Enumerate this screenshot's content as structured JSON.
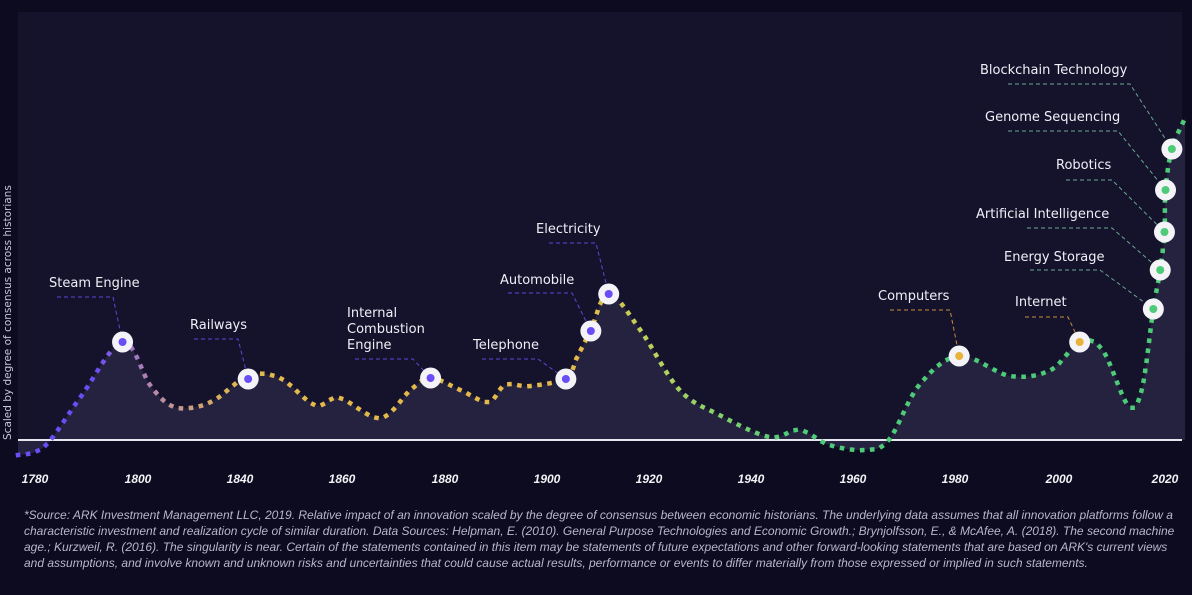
{
  "chart_data": {
    "type": "area",
    "title": "",
    "xlabel": "",
    "ylabel": "Scaled by degree of consensus across historians",
    "x_tick_labels": [
      "1780",
      "1800",
      "1840",
      "1860",
      "1880",
      "1900",
      "1920",
      "1940",
      "1960",
      "1980",
      "2000",
      "2020"
    ],
    "xlim": [
      1776,
      2024
    ],
    "ylim": [
      -5,
      100
    ],
    "grid": false,
    "line_style": "dotted",
    "colors": {
      "purple": "#6a4df5",
      "rose": "#b98aa8",
      "yellow": "#e2b94a",
      "lime": "#b9d35e",
      "green": "#4ecb78",
      "orange": "#e8a73a"
    },
    "curve": {
      "x": [
        1776.7,
        1780,
        1783,
        1789,
        1797,
        1804.7,
        1812.5,
        1820.4,
        1830,
        1841.6,
        1847.8,
        1854.7,
        1859.5,
        1867.4,
        1873.3,
        1877.2,
        1883,
        1888.5,
        1891.8,
        1896.7,
        1903.7,
        1906,
        1908.6,
        1912.1,
        1918.3,
        1926,
        1933.8,
        1943.6,
        1949.5,
        1955.4,
        1962.2,
        1967,
        1973,
        1980.8,
        1990.6,
        1998.4,
        2003.9,
        2008.2,
        2013,
        2015.6,
        2017.8,
        2019.1,
        2019.9,
        2020.1,
        2021.3,
        2023.8
      ],
      "y": [
        -3.75,
        -3,
        0,
        11,
        24.5,
        13.75,
        8.75,
        8,
        10,
        16,
        15.5,
        8.75,
        10.5,
        5.5,
        12.5,
        15.5,
        12.5,
        9.5,
        13.75,
        13.5,
        15.5,
        21,
        27.5,
        36.5,
        27.5,
        12.5,
        6.25,
        0.75,
        2.5,
        -1.25,
        -2.5,
        0,
        13.75,
        21,
        16,
        17.5,
        24.5,
        22.5,
        8.75,
        12.5,
        32.75,
        42.5,
        52,
        62.5,
        72.75,
        80.5
      ]
    },
    "innovations": [
      {
        "label": "Steam Engine",
        "x": 1797,
        "y": 24.5,
        "color": "purple"
      },
      {
        "label": "Railways",
        "x": 1841.6,
        "y": 15.25,
        "color": "purple"
      },
      {
        "label": "Internal Combustion Engine",
        "x": 1877.2,
        "y": 15.5,
        "color": "purple"
      },
      {
        "label": "Telephone",
        "x": 1903.7,
        "y": 15.25,
        "color": "purple"
      },
      {
        "label": "Automobile",
        "x": 1908.6,
        "y": 27.25,
        "color": "purple"
      },
      {
        "label": "Electricity",
        "x": 1912.1,
        "y": 36.5,
        "color": "purple"
      },
      {
        "label": "Computers",
        "x": 1980.8,
        "y": 21,
        "color": "orange"
      },
      {
        "label": "Internet",
        "x": 2003.9,
        "y": 24.5,
        "color": "orange"
      },
      {
        "label": "Energy Storage",
        "x": 2017.8,
        "y": 32.75,
        "color": "green"
      },
      {
        "label": "Artificial Intelligence",
        "x": 2019.1,
        "y": 42.5,
        "color": "green"
      },
      {
        "label": "Robotics",
        "x": 2019.9,
        "y": 52,
        "color": "green"
      },
      {
        "label": "Genome Sequencing",
        "x": 2020.1,
        "y": 62.5,
        "color": "green"
      },
      {
        "label": "Blockchain Technology",
        "x": 2021.3,
        "y": 72.75,
        "color": "green"
      }
    ]
  },
  "footnote": "*Source: ARK Investment Management LLC, 2019. Relative impact of an innovation scaled by the degree of consensus between economic historians. The underlying data assumes that all innovation platforms follow a characteristic investment and realization cycle of similar duration. Data Sources: Helpman, E. (2010). General Purpose Technologies and Economic Growth.; Brynjolfsson, E., & McAfee, A. (2018). The second machine age.; Kurzweil, R. (2016). The singularity is near. Certain of the statements contained in this item may be statements of future expectations and other forward-looking statements that are based on ARK's current views and assumptions, and involve known and unknown risks and uncertainties that could cause actual results, performance or events to differ materially from those expressed or implied in such statements."
}
